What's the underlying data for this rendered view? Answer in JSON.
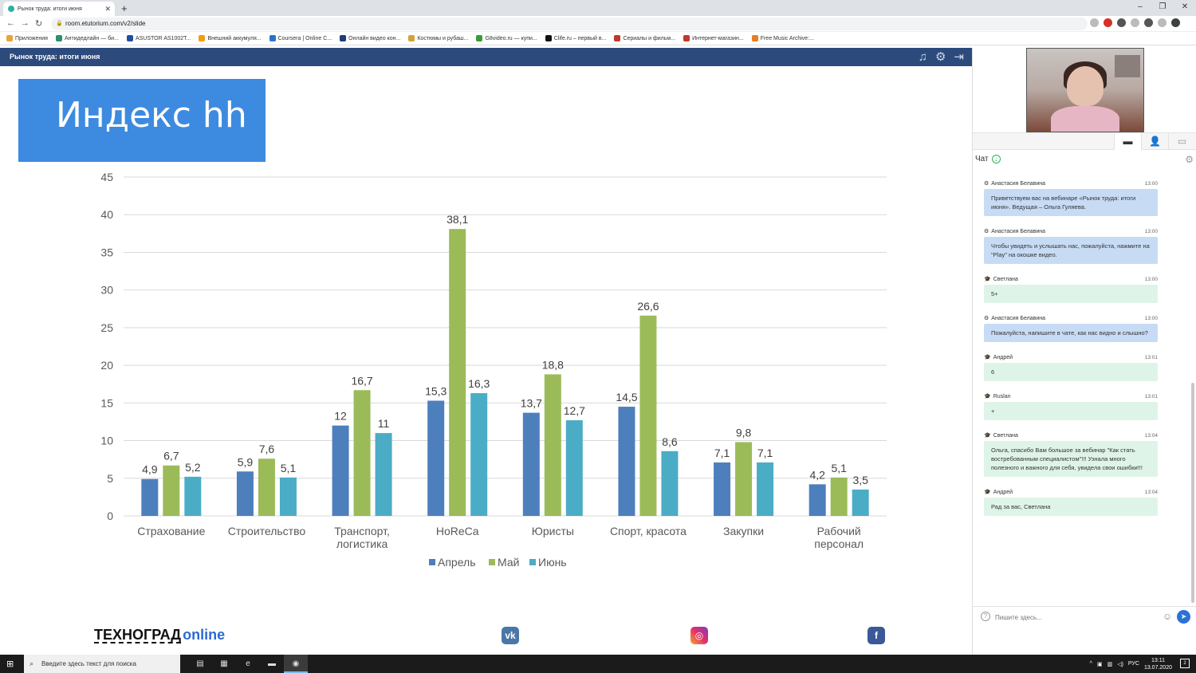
{
  "browser": {
    "tab_title": "Рынок труда: итоги июня",
    "url": "room.etutorium.com/v2/slide",
    "bookmarks": [
      {
        "label": "Приложения",
        "color": "#e8a33a"
      },
      {
        "label": "Антидедлайн — би...",
        "color": "#2a8f6b"
      },
      {
        "label": "ASUSTOR AS1002T...",
        "color": "#1f4fa3"
      },
      {
        "label": "Внешний аккумуля...",
        "color": "#f39c12"
      },
      {
        "label": "Coursera | Online C...",
        "color": "#2a73cc"
      },
      {
        "label": "Онлайн видео кон...",
        "color": "#1d3c78"
      },
      {
        "label": "Костюмы и рубаш...",
        "color": "#d4a23a"
      },
      {
        "label": "G8video.ru — купи...",
        "color": "#3a9b3a"
      },
      {
        "label": "Clife.ru – первый в...",
        "color": "#111111"
      },
      {
        "label": "Сериалы и фильм...",
        "color": "#c0392b"
      },
      {
        "label": "Интернет-магазин...",
        "color": "#c0392b"
      },
      {
        "label": "Free Music Archive:...",
        "color": "#e67e22"
      }
    ]
  },
  "webinar": {
    "title": "Рынок труда: итоги июня",
    "icons": [
      "music-icon",
      "gear-icon",
      "exit-icon"
    ]
  },
  "slide": {
    "title": "Индекс hh",
    "logo_main": "ТЕХНОГРАД",
    "logo_suffix": "online",
    "social": [
      {
        "name": "vk-icon",
        "glyph": "vk"
      },
      {
        "name": "instagram-icon",
        "glyph": "◎"
      },
      {
        "name": "facebook-icon",
        "glyph": "f"
      }
    ]
  },
  "chart_data": {
    "type": "bar",
    "categories": [
      "Страхование",
      "Строительство",
      "Транспорт,\nлогистика",
      "HoReCa",
      "Юристы",
      "Спорт, красота",
      "Закупки",
      "Рабочий\nперсонал"
    ],
    "series": [
      {
        "name": "Апрель",
        "color": "#4e7fbd",
        "values": [
          4.9,
          5.9,
          12,
          15.3,
          13.7,
          14.5,
          7.1,
          4.2
        ],
        "labels": [
          "4,9",
          "5,9",
          "12",
          "15,3",
          "13,7",
          "14,5",
          "7,1",
          "4,2"
        ]
      },
      {
        "name": "Май",
        "color": "#9bbb59",
        "values": [
          6.7,
          7.6,
          16.7,
          38.1,
          18.8,
          26.6,
          9.8,
          5.1
        ],
        "labels": [
          "6,7",
          "7,6",
          "16,7",
          "38,1",
          "18,8",
          "26,6",
          "9,8",
          "5,1"
        ]
      },
      {
        "name": "Июнь",
        "color": "#4bacc6",
        "values": [
          5.2,
          5.1,
          11,
          16.3,
          12.7,
          8.6,
          7.1,
          3.5
        ],
        "labels": [
          "5,2",
          "5,1",
          "11",
          "16,3",
          "12,7",
          "8,6",
          "7,1",
          "3,5"
        ]
      }
    ],
    "ylim": [
      0,
      45
    ],
    "yticks": [
      0,
      5,
      10,
      15,
      20,
      25,
      30,
      35,
      40,
      45
    ],
    "grid": true,
    "legend": "bottom"
  },
  "chat": {
    "title": "Чат",
    "input_placeholder": "Пишите здесь...",
    "messages": [
      {
        "author": "Анастасия Белавина",
        "role": "moderator",
        "time": "13:00",
        "text": "Приветствуем вас на вебинаре «Рынок труда: итоги июня». Ведущая – Ольга Гуляева."
      },
      {
        "author": "Анастасия Белавина",
        "role": "moderator",
        "time": "13:00",
        "text": "Чтобы увидеть и услышать нас, пожалуйста, нажмите на \"Play\" на окошке видео."
      },
      {
        "author": "Светлана",
        "role": "user",
        "time": "13:00",
        "text": "5+"
      },
      {
        "author": "Анастасия Белавина",
        "role": "moderator",
        "time": "13:00",
        "text": "Пожалуйста, напишите в чате, как нас видно и слышно?"
      },
      {
        "author": "Андрей",
        "role": "user",
        "time": "13:01",
        "text": "6"
      },
      {
        "author": "Ruslan",
        "role": "user",
        "time": "13:01",
        "text": "+"
      },
      {
        "author": "Светлана",
        "role": "user",
        "time": "13:04",
        "text": "Ольга, спасибо Вам большое за вебинар \"Как стать востребованным специалистом\"!!! Узнала много полезного и важного для себя, увидела свои ошибки!!!"
      },
      {
        "author": "Андрей",
        "role": "user",
        "time": "13:04",
        "text": "Рад за вас, Светлана"
      }
    ]
  },
  "taskbar": {
    "search_placeholder": "Введите здесь текст для поиска",
    "lang": "РУС",
    "time": "13:11",
    "date": "13.07.2020",
    "notifications": "2"
  }
}
